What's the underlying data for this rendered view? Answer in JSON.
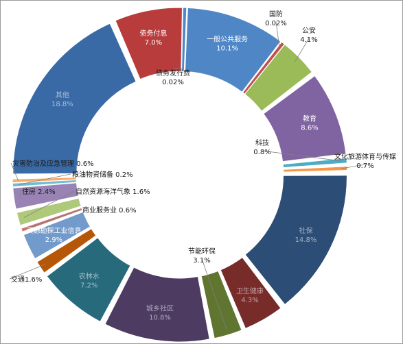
{
  "chart_data": {
    "type": "pie",
    "title": "",
    "legend": "none",
    "slices": [
      {
        "name": "一般公共服务",
        "value": 10.1,
        "label": "10.1%",
        "color": "#4f86c6"
      },
      {
        "name": "国防",
        "value": 0.02,
        "label": "0.02%",
        "color": "#c0504d"
      },
      {
        "name": "公安",
        "value": 4.1,
        "label": "4.1%",
        "color": "#9bbb59"
      },
      {
        "name": "教育",
        "value": 8.6,
        "label": "8.6%",
        "color": "#8064a2"
      },
      {
        "name": "科技",
        "value": 0.8,
        "label": "0.8%",
        "color": "#4bacc6"
      },
      {
        "name": "文化旅游体育与传媒",
        "value": 0.7,
        "label": "0.7%",
        "color": "#f79646"
      },
      {
        "name": "社保",
        "value": 14.8,
        "label": "14.8%",
        "color": "#2c4d75"
      },
      {
        "name": "卫生健康",
        "value": 4.3,
        "label": "4.3%",
        "color": "#772c2a"
      },
      {
        "name": "节能环保",
        "value": 3.1,
        "label": "3.1%",
        "color": "#5f7530"
      },
      {
        "name": "城乡社区",
        "value": 10.8,
        "label": "10.8%",
        "color": "#4d3b62"
      },
      {
        "name": "农林水",
        "value": 7.2,
        "label": "7.2%",
        "color": "#276a7c"
      },
      {
        "name": "交通",
        "value": 1.6,
        "label": "1.6%",
        "color": "#b65708"
      },
      {
        "name": "资源勘探工业信息",
        "value": 2.9,
        "label": "2.9%",
        "color": "#729aca"
      },
      {
        "name": "商业服务业",
        "value": 0.6,
        "label": "0.6%",
        "color": "#cd7371"
      },
      {
        "name": "自然资源海洋气象",
        "value": 1.6,
        "label": "1.6%",
        "color": "#afc97a"
      },
      {
        "name": "住房",
        "value": 2.4,
        "label": "2.4%",
        "color": "#9983b5"
      },
      {
        "name": "粮油物资储备",
        "value": 0.2,
        "label": "0.2%",
        "color": "#6fbdd1"
      },
      {
        "name": "灾害防治及应急管理",
        "value": 0.6,
        "label": "0.6%",
        "color": "#f9ab6b"
      },
      {
        "name": "其他",
        "value": 18.8,
        "label": "18.8%",
        "color": "#3a6aa6"
      },
      {
        "name": "债务付息",
        "value": 7.0,
        "label": "7.0%",
        "color": "#b83c3c"
      },
      {
        "name": "债务发行费",
        "value": 0.02,
        "label": "0.02%",
        "color": "#4f86c6"
      }
    ]
  }
}
